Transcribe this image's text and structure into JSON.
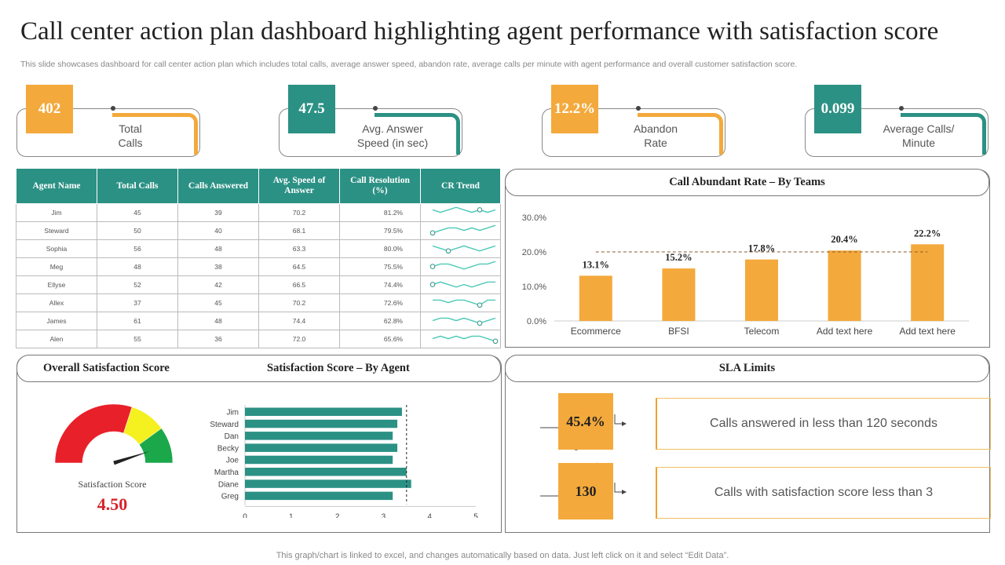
{
  "title": "Call center action plan dashboard highlighting agent performance with satisfaction score",
  "subtitle": "This slide showcases dashboard for call center action plan which includes total calls, average answer speed, abandon rate, average calls per minute with agent performance and overall customer satisfaction score.",
  "colors": {
    "orange": "#f4a93c",
    "teal": "#2b9184",
    "red": "#e8202a",
    "yellow": "#f5f020",
    "green": "#1aa84a"
  },
  "kpis": [
    {
      "value": "402",
      "label": "Total\nCalls",
      "color": "#f4a93c"
    },
    {
      "value": "47.5",
      "label": "Avg. Answer\nSpeed (in sec)",
      "color": "#2b9184"
    },
    {
      "value": "12.2%",
      "label": "Abandon\nRate",
      "color": "#f4a93c"
    },
    {
      "value": "0.099",
      "label": "Average Calls/\nMinute",
      "color": "#2b9184"
    }
  ],
  "agent_table": {
    "headers": [
      "Agent Name",
      "Total Calls",
      "Calls Answered",
      "Avg. Speed of Answer",
      "Call Resolution (%)",
      "CR Trend"
    ],
    "rows": [
      {
        "name": "Jim",
        "total": "45",
        "answered": "39",
        "speed": "70.2",
        "resolution": "81.2%",
        "indicator": "yellow-circle"
      },
      {
        "name": "Steward",
        "total": "50",
        "answered": "40",
        "speed": "68.1",
        "resolution": "79.5%",
        "indicator": "green-up-triangle"
      },
      {
        "name": "Sophia",
        "total": "56",
        "answered": "48",
        "speed": "63.3",
        "resolution": "80.0%",
        "indicator": "green-up-triangle"
      },
      {
        "name": "Meg",
        "total": "48",
        "answered": "38",
        "speed": "64.5",
        "resolution": "75.5%",
        "indicator": "green-up-triangle"
      },
      {
        "name": "Ellyse",
        "total": "52",
        "answered": "42",
        "speed": "66.5",
        "resolution": "74.4%",
        "indicator": "green-up-triangle"
      },
      {
        "name": "Allex",
        "total": "37",
        "answered": "45",
        "speed": "70.2",
        "resolution": "72.6%",
        "indicator": "green-up-triangle"
      },
      {
        "name": "James",
        "total": "61",
        "answered": "48",
        "speed": "74.4",
        "resolution": "62.8%",
        "indicator": "green-up-triangle"
      },
      {
        "name": "Alen",
        "total": "55",
        "answered": "36",
        "speed": "72.0",
        "resolution": "65.6%",
        "indicator": "red-diamond"
      }
    ]
  },
  "abandon_panel_title": "Call Abundant  Rate – By Teams",
  "satisfaction_panel": {
    "overall_title": "Overall Satisfaction Score",
    "by_agent_title": "Satisfaction Score – By Agent",
    "gauge_label": "Satisfaction Score",
    "gauge_value": "4.50"
  },
  "sla": {
    "title": "SLA Limits",
    "items": [
      {
        "value": "45.4%",
        "text": "Calls answered in less than 120 seconds"
      },
      {
        "value": "130",
        "text": "Calls with satisfaction score less than 3"
      }
    ]
  },
  "chart_data": [
    {
      "type": "bar",
      "title": "Call Abundant  Rate – By Teams",
      "categories": [
        "Ecommerce",
        "BFSI",
        "Telecom",
        "Add text here",
        "Add text here"
      ],
      "values": [
        13.1,
        15.2,
        17.8,
        20.4,
        22.2
      ],
      "data_labels": [
        "13.1%",
        "15.2%",
        "17.8%",
        "20.4%",
        "22.2%"
      ],
      "y_ticks": [
        "0.0%",
        "10.0%",
        "20.0%",
        "30.0%"
      ],
      "ylim": [
        0,
        30
      ],
      "target_line": 20,
      "color": "#f4a93c"
    },
    {
      "type": "bar",
      "orientation": "horizontal",
      "title": "Satisfaction Score – By Agent",
      "categories": [
        "Jim",
        "Steward",
        "Dan",
        "Becky",
        "Joe",
        "Martha",
        "Diane",
        "Greg"
      ],
      "values": [
        3.4,
        3.3,
        3.2,
        3.3,
        3.2,
        3.5,
        3.6,
        3.2
      ],
      "x_ticks": [
        "0",
        "1",
        "2",
        "3",
        "4",
        "5"
      ],
      "xlim": [
        0,
        5
      ],
      "target_line": 3.5,
      "color": "#2b9184"
    },
    {
      "type": "line",
      "title": "CR Trend",
      "series": [
        {
          "name": "Jim",
          "values": [
            3,
            2,
            3,
            4,
            3,
            2,
            3,
            2,
            3
          ],
          "marker_index": 6
        },
        {
          "name": "Steward",
          "values": [
            1,
            2,
            3,
            3,
            2,
            3,
            2,
            3,
            4
          ],
          "marker_index": 0
        },
        {
          "name": "Sophia",
          "values": [
            3,
            2,
            1,
            2,
            3,
            2,
            1,
            2,
            3
          ],
          "marker_index": 2
        },
        {
          "name": "Meg",
          "values": [
            2,
            3,
            3,
            2,
            1,
            2,
            3,
            3,
            4
          ],
          "marker_index": 0
        },
        {
          "name": "Ellyse",
          "values": [
            2,
            3,
            2,
            1,
            2,
            1,
            2,
            3,
            3
          ],
          "marker_index": 0
        },
        {
          "name": "Allex",
          "values": [
            3,
            3,
            2,
            3,
            3,
            2,
            1,
            3,
            3
          ],
          "marker_index": 6
        },
        {
          "name": "James",
          "values": [
            2,
            3,
            3,
            2,
            3,
            2,
            1,
            2,
            3
          ],
          "marker_index": 6
        },
        {
          "name": "Alen",
          "values": [
            2,
            3,
            2,
            3,
            2,
            3,
            3,
            2,
            1
          ],
          "marker_index": 8
        }
      ]
    },
    {
      "type": "gauge",
      "title": "Satisfaction Score",
      "value": 4.5,
      "min": 0,
      "max": 5,
      "bands": [
        {
          "from": 0,
          "to": 3,
          "color": "#e8202a"
        },
        {
          "from": 3,
          "to": 4,
          "color": "#f5f020"
        },
        {
          "from": 4,
          "to": 5,
          "color": "#1aa84a"
        }
      ]
    }
  ],
  "footer": "This graph/chart is linked to excel,  and changes automatically based on data. Just left click on it and select “Edit Data”."
}
